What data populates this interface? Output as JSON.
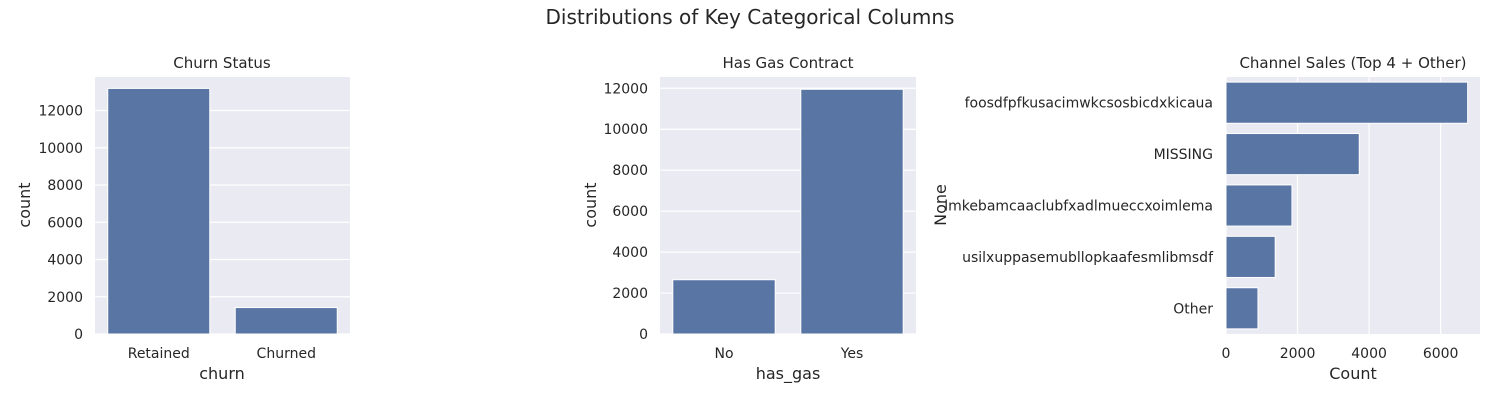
{
  "figure": {
    "suptitle": "Distributions of Key Categorical Columns"
  },
  "style": {
    "bar_color": "#5975a4",
    "panel_bg": "#eaeaf2",
    "grid_color": "#ffffff",
    "text_color": "#262626"
  },
  "chart_data": [
    {
      "type": "bar",
      "title": "Churn Status",
      "xlabel": "churn",
      "ylabel": "count",
      "categories": [
        "Retained",
        "Churned"
      ],
      "values": [
        13187,
        1419
      ],
      "ylim": [
        0,
        13800
      ],
      "yticks": [
        0,
        2000,
        4000,
        6000,
        8000,
        10000,
        12000
      ],
      "grid": true
    },
    {
      "type": "bar",
      "title": "Has Gas Contract",
      "xlabel": "has_gas",
      "ylabel": "count",
      "categories": [
        "No",
        "Yes"
      ],
      "values": [
        2650,
        11950
      ],
      "ylim": [
        0,
        12550
      ],
      "yticks": [
        0,
        2000,
        4000,
        6000,
        8000,
        10000,
        12000
      ],
      "grid": true
    },
    {
      "type": "barh",
      "title": "Channel Sales (Top 4 + Other)",
      "xlabel": "Count",
      "ylabel": "None",
      "categories": [
        "foosdfpfkusacimwkcsosbicdxkicaua",
        "MISSING",
        "lmkebamcaaclubfxadlmueccxoimlema",
        "usilxuppasemubllopkaafesmlibmsdf",
        "Other"
      ],
      "values": [
        6754,
        3725,
        1843,
        1375,
        893
      ],
      "xlim": [
        0,
        7100
      ],
      "xticks": [
        0,
        2000,
        4000,
        6000
      ],
      "grid": true
    }
  ]
}
